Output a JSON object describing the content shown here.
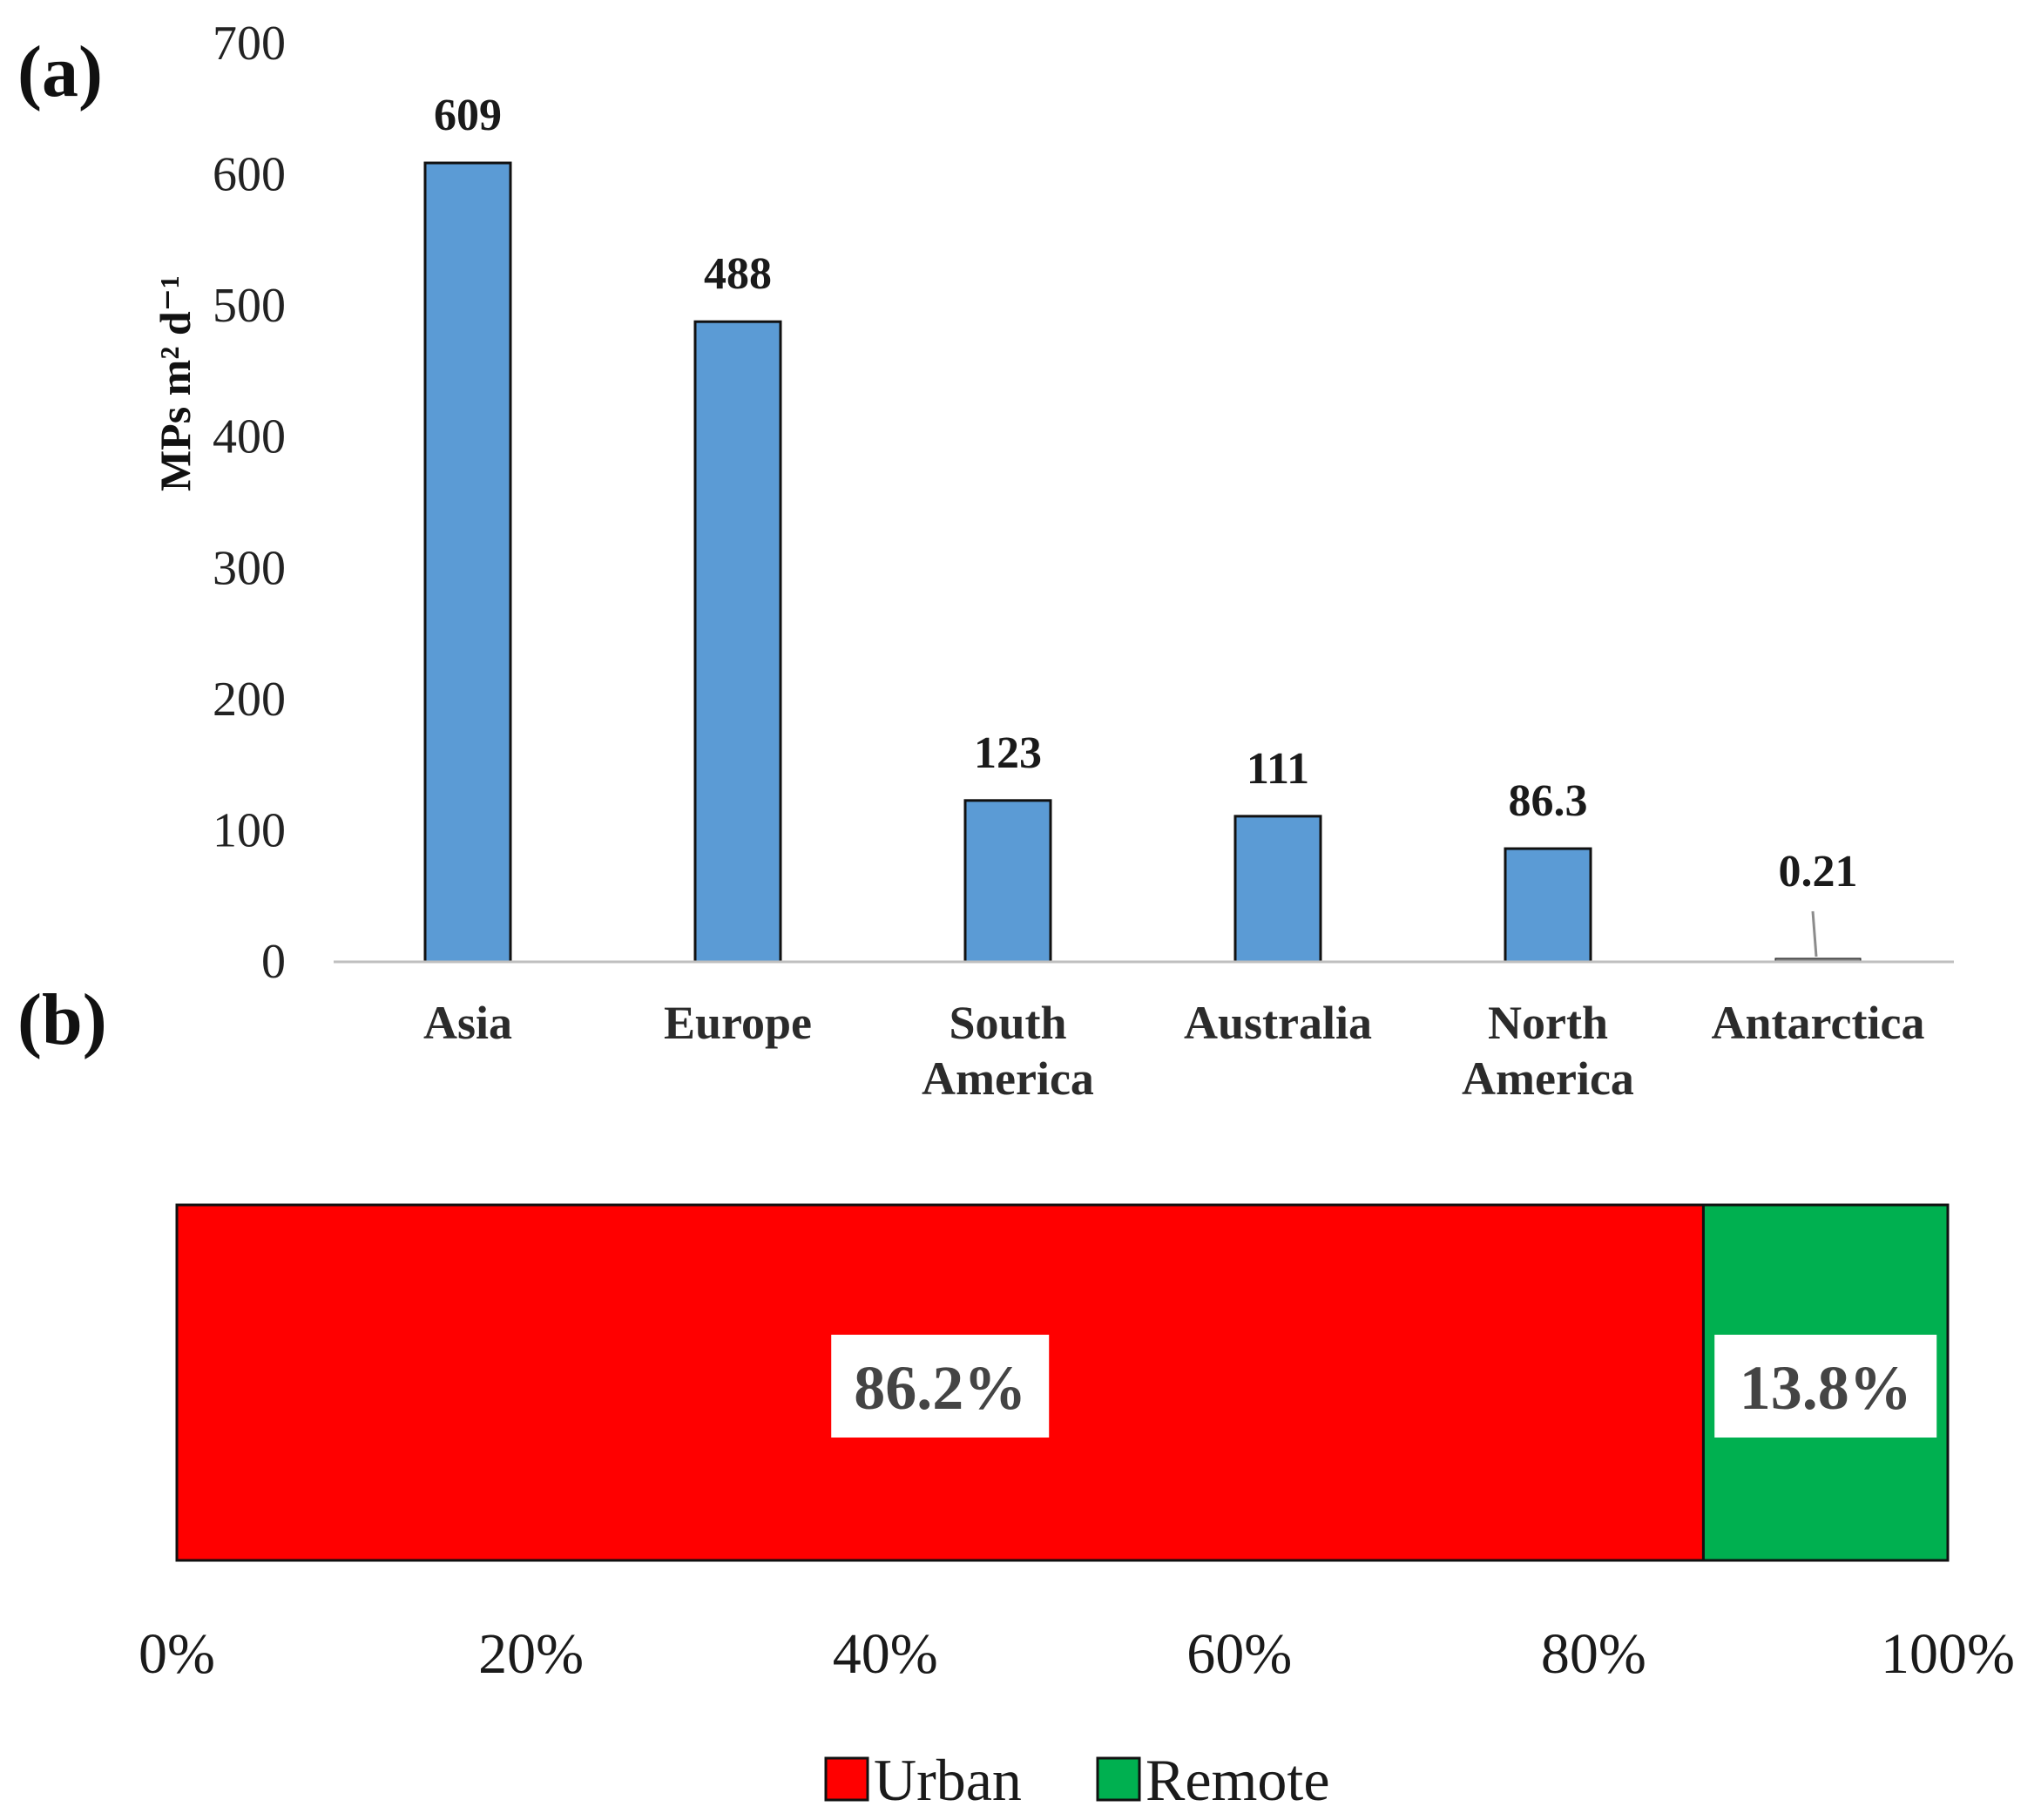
{
  "chart_data": [
    {
      "id": "a",
      "panel_label": "(a)",
      "type": "bar",
      "title": "",
      "xlabel": "",
      "ylabel": "MPs m² d⁻¹",
      "ylim": [
        0,
        700
      ],
      "yticks": [
        0,
        100,
        200,
        300,
        400,
        500,
        600,
        700
      ],
      "grid": false,
      "categories": [
        {
          "lines": [
            "Asia"
          ]
        },
        {
          "lines": [
            "Europe"
          ]
        },
        {
          "lines": [
            "South",
            "America"
          ]
        },
        {
          "lines": [
            "Australia"
          ]
        },
        {
          "lines": [
            "North",
            "America"
          ]
        },
        {
          "lines": [
            "Antarctica"
          ]
        }
      ],
      "values": [
        609,
        488,
        123,
        111,
        86.3,
        0.21
      ],
      "data_labels": [
        "609",
        "488",
        "123",
        "111",
        "86.3",
        "0.21"
      ],
      "bar_color": "#5b9bd5"
    },
    {
      "id": "b",
      "panel_label": "(b)",
      "type": "bar",
      "orientation": "horizontal-stacked-100",
      "xlim": [
        0,
        100
      ],
      "xticks": [
        "0%",
        "20%",
        "40%",
        "60%",
        "80%",
        "100%"
      ],
      "series": [
        {
          "name": "Urban",
          "value": 86.2,
          "label": "86.2%",
          "color": "#ff0000"
        },
        {
          "name": "Remote",
          "value": 13.8,
          "label": "13.8%",
          "color": "#00b050"
        }
      ],
      "legend_position": "bottom-center"
    }
  ]
}
